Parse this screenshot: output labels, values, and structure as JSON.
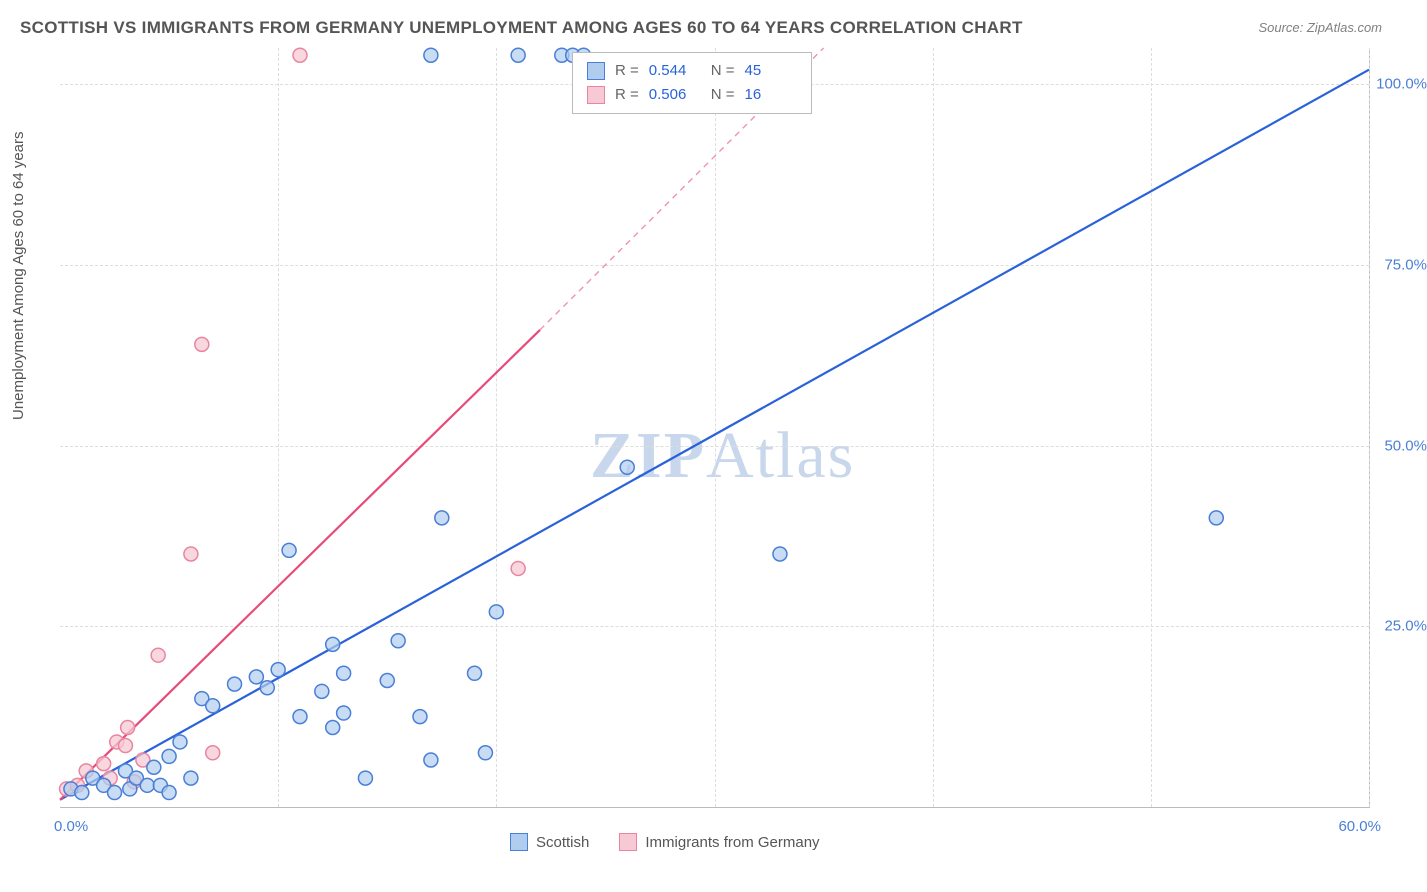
{
  "title": "SCOTTISH VS IMMIGRANTS FROM GERMANY UNEMPLOYMENT AMONG AGES 60 TO 64 YEARS CORRELATION CHART",
  "source": "Source: ZipAtlas.com",
  "y_axis_label": "Unemployment Among Ages 60 to 64 years",
  "watermark_prefix": "ZIP",
  "watermark_suffix": "Atlas",
  "chart": {
    "type": "scatter",
    "xlim": [
      0,
      60
    ],
    "ylim": [
      0,
      105
    ],
    "x_tick_labels": [
      "0.0%",
      "60.0%"
    ],
    "y_ticks": [
      25,
      50,
      75,
      100
    ],
    "y_tick_labels": [
      "25.0%",
      "50.0%",
      "75.0%",
      "100.0%"
    ],
    "x_grid_at": [
      10,
      20,
      30,
      40,
      50,
      60
    ],
    "background_color": "#ffffff",
    "grid_color": "#dddddd",
    "axis_color": "#bbbbbb",
    "tick_label_color": "#4a7fd6",
    "marker_radius": 7,
    "marker_stroke_width": 1.5,
    "line_width": 2.2,
    "dashed_line_dash": "6,5"
  },
  "series": {
    "scottish": {
      "label": "Scottish",
      "fill": "#b0cdf0",
      "stroke": "#4a7fd6",
      "line_color": "#2962d9",
      "R": "0.544",
      "N": "45",
      "trend": {
        "x1": 0,
        "y1": 1,
        "x2": 60,
        "y2": 102
      },
      "points": [
        [
          0.5,
          2.5
        ],
        [
          1,
          2
        ],
        [
          1.5,
          4
        ],
        [
          2,
          3
        ],
        [
          2.5,
          2
        ],
        [
          3,
          5
        ],
        [
          3.2,
          2.5
        ],
        [
          3.5,
          4
        ],
        [
          4,
          3
        ],
        [
          4.3,
          5.5
        ],
        [
          4.6,
          3
        ],
        [
          5,
          7
        ],
        [
          5,
          2
        ],
        [
          5.5,
          9
        ],
        [
          6,
          4
        ],
        [
          6.5,
          15
        ],
        [
          7,
          14
        ],
        [
          8,
          17
        ],
        [
          9,
          18
        ],
        [
          9.5,
          16.5
        ],
        [
          10,
          19
        ],
        [
          10.5,
          35.5
        ],
        [
          11,
          12.5
        ],
        [
          12,
          16
        ],
        [
          12.5,
          22.5
        ],
        [
          12.5,
          11
        ],
        [
          13,
          18.5
        ],
        [
          13,
          13
        ],
        [
          14,
          4
        ],
        [
          15,
          17.5
        ],
        [
          15.5,
          23
        ],
        [
          16.5,
          12.5
        ],
        [
          17,
          6.5
        ],
        [
          17.5,
          40
        ],
        [
          19,
          18.5
        ],
        [
          19.5,
          7.5
        ],
        [
          20,
          27
        ],
        [
          23,
          104
        ],
        [
          23.5,
          104
        ],
        [
          24,
          104
        ],
        [
          26,
          47
        ],
        [
          33,
          35
        ],
        [
          17,
          104
        ],
        [
          21,
          104
        ],
        [
          53,
          40
        ]
      ]
    },
    "germany": {
      "label": "Immigrants from Germany",
      "fill": "#f7c9d4",
      "stroke": "#e985a2",
      "line_color": "#e74b7a",
      "R": "0.506",
      "N": "16",
      "trend_solid": {
        "x1": 0,
        "y1": 1,
        "x2": 22,
        "y2": 66
      },
      "trend_dashed": {
        "x1": 22,
        "y1": 66,
        "x2": 35,
        "y2": 105
      },
      "points": [
        [
          0.3,
          2.5
        ],
        [
          0.8,
          3
        ],
        [
          1.2,
          5
        ],
        [
          2,
          6
        ],
        [
          2.3,
          4
        ],
        [
          2.6,
          9
        ],
        [
          3,
          8.5
        ],
        [
          3.1,
          11
        ],
        [
          3.4,
          3.5
        ],
        [
          3.8,
          6.5
        ],
        [
          4.5,
          21
        ],
        [
          6,
          35
        ],
        [
          7,
          7.5
        ],
        [
          11,
          104
        ],
        [
          6.5,
          64
        ],
        [
          21,
          33
        ]
      ]
    }
  }
}
